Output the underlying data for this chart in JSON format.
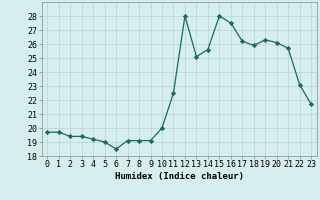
{
  "x": [
    0,
    1,
    2,
    3,
    4,
    5,
    6,
    7,
    8,
    9,
    10,
    11,
    12,
    13,
    14,
    15,
    16,
    17,
    18,
    19,
    20,
    21,
    22,
    23
  ],
  "y": [
    19.7,
    19.7,
    19.4,
    19.4,
    19.2,
    19.0,
    18.5,
    19.1,
    19.1,
    19.1,
    20.0,
    22.5,
    28.0,
    25.1,
    25.6,
    28.0,
    27.5,
    26.2,
    25.9,
    26.3,
    26.1,
    25.7,
    23.1,
    21.7
  ],
  "line_color": "#1a6b5a",
  "marker": "D",
  "marker_size": 2.2,
  "bg_color": "#d6eeee",
  "grid_color": "#b8d4d4",
  "xlabel": "Humidex (Indice chaleur)",
  "ylim": [
    18,
    29
  ],
  "yticks": [
    18,
    19,
    20,
    21,
    22,
    23,
    24,
    25,
    26,
    27,
    28
  ],
  "xticks": [
    0,
    1,
    2,
    3,
    4,
    5,
    6,
    7,
    8,
    9,
    10,
    11,
    12,
    13,
    14,
    15,
    16,
    17,
    18,
    19,
    20,
    21,
    22,
    23
  ],
  "xlabel_fontsize": 6.5,
  "tick_fontsize": 6.0
}
